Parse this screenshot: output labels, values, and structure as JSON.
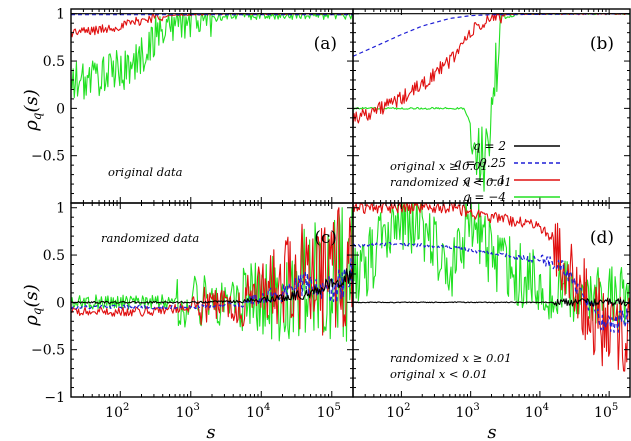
{
  "figure": {
    "ylabel": "ρ_q(s)",
    "xlabel": "s"
  },
  "colors": {
    "q2": "#000000",
    "q025": "#1f1fd6",
    "qm1": "#e01010",
    "qm4": "#22e022"
  },
  "legend": {
    "entries": [
      {
        "label": "q = 2",
        "q": "2",
        "style": "solid",
        "color": "#000000"
      },
      {
        "label": "q = 0.25",
        "q": "0.25",
        "style": "dashed",
        "color": "#1f1fd6"
      },
      {
        "label": "q = −1",
        "q": "−1",
        "style": "solid",
        "color": "#e01010"
      },
      {
        "label": "q = −4",
        "q": "−4",
        "style": "solid",
        "color": "#22e022"
      }
    ]
  },
  "chart_data": [
    {
      "panel": "(a)",
      "type": "line",
      "xscale": "log",
      "xlim": [
        20,
        200000
      ],
      "ylim": [
        -1,
        1.05
      ],
      "annotations": [
        "original data"
      ],
      "series": [
        {
          "name": "q = 2",
          "x": [
            20,
            200000
          ],
          "y": [
            1.0,
            1.0
          ]
        },
        {
          "name": "q = 0.25",
          "x": [
            20,
            200000
          ],
          "y": [
            0.99,
            0.99
          ]
        },
        {
          "name": "q = −1",
          "x": [
            20,
            50,
            100,
            200,
            300,
            500,
            1000,
            3000,
            200000
          ],
          "y": [
            0.8,
            0.83,
            0.87,
            0.93,
            0.96,
            0.98,
            0.99,
            1.0,
            1.0
          ]
        },
        {
          "name": "q = −4",
          "x": [
            20,
            50,
            100,
            150,
            200,
            300,
            400,
            600,
            1000,
            2000,
            5000,
            200000
          ],
          "y": [
            0.25,
            0.35,
            0.4,
            0.45,
            0.55,
            0.75,
            0.85,
            0.92,
            0.95,
            0.97,
            0.99,
            1.0
          ]
        }
      ]
    },
    {
      "panel": "(b)",
      "type": "line",
      "xscale": "log",
      "xlim": [
        20,
        200000
      ],
      "ylim": [
        -1,
        1.05
      ],
      "annotations": [
        "original x ≥ 0.01",
        "randomized x < 0.01"
      ],
      "series": [
        {
          "name": "q = 2",
          "x": [
            20,
            200000
          ],
          "y": [
            1.0,
            1.0
          ]
        },
        {
          "name": "q = 0.25",
          "x": [
            20,
            50,
            100,
            200,
            500,
            1000,
            2000,
            200000
          ],
          "y": [
            0.55,
            0.68,
            0.78,
            0.87,
            0.95,
            0.98,
            0.99,
            1.0
          ]
        },
        {
          "name": "q = −1",
          "x": [
            20,
            50,
            100,
            200,
            500,
            1000,
            2000,
            3000,
            5000,
            200000
          ],
          "y": [
            -0.1,
            0.0,
            0.1,
            0.25,
            0.5,
            0.8,
            0.95,
            0.99,
            1.0,
            1.0
          ]
        },
        {
          "name": "q = −4",
          "x": [
            20,
            50,
            100,
            200,
            400,
            800,
            1200,
            1600,
            2000,
            2500,
            3000,
            5000,
            200000
          ],
          "y": [
            0.0,
            0.0,
            0.0,
            0.0,
            0.0,
            0.0,
            -0.3,
            -0.7,
            0.0,
            0.6,
            0.95,
            1.0,
            1.0
          ]
        }
      ]
    },
    {
      "panel": "(c)",
      "type": "line",
      "xscale": "log",
      "xlim": [
        20,
        200000
      ],
      "ylim": [
        -1,
        1.05
      ],
      "annotations": [
        "randomized data"
      ],
      "series": [
        {
          "name": "q = 2",
          "x": [
            20,
            1000,
            5000,
            20000,
            50000,
            100000,
            200000
          ],
          "y": [
            0.0,
            0.0,
            0.01,
            0.05,
            0.1,
            0.2,
            0.3
          ]
        },
        {
          "name": "q = 0.25",
          "x": [
            20,
            1000,
            5000,
            10000,
            20000,
            40000,
            100000,
            200000
          ],
          "y": [
            -0.05,
            -0.05,
            -0.02,
            0.05,
            0.1,
            0.2,
            0.1,
            0.3
          ]
        },
        {
          "name": "q = −1",
          "x": [
            20,
            200,
            1000,
            5000,
            20000,
            50000,
            100000,
            200000
          ],
          "y": [
            -0.1,
            -0.1,
            -0.05,
            0.0,
            0.2,
            0.3,
            0.3,
            0.5
          ]
        },
        {
          "name": "q = −4",
          "x": [
            20,
            200,
            1000,
            5000,
            20000,
            50000,
            100000,
            200000
          ],
          "y": [
            0.0,
            0.0,
            0.0,
            0.05,
            0.1,
            0.2,
            0.3,
            0.4
          ]
        }
      ]
    },
    {
      "panel": "(d)",
      "type": "line",
      "xscale": "log",
      "xlim": [
        20,
        200000
      ],
      "ylim": [
        -1,
        1.05
      ],
      "annotations": [
        "randomized x ≥ 0.01",
        "original x < 0.01"
      ],
      "series": [
        {
          "name": "q = 2",
          "x": [
            20,
            200000
          ],
          "y": [
            0.0,
            0.0
          ]
        },
        {
          "name": "q = 0.25",
          "x": [
            20,
            100,
            500,
            1000,
            3000,
            10000,
            20000,
            40000,
            80000,
            150000,
            200000
          ],
          "y": [
            0.6,
            0.62,
            0.58,
            0.55,
            0.5,
            0.45,
            0.4,
            0.1,
            -0.2,
            -0.2,
            -0.1
          ]
        },
        {
          "name": "q = −1",
          "x": [
            20,
            100,
            500,
            1000,
            2000,
            5000,
            10000,
            20000,
            50000,
            100000,
            200000
          ],
          "y": [
            1.0,
            1.0,
            1.0,
            0.95,
            0.9,
            0.85,
            0.8,
            0.6,
            0.0,
            -0.3,
            -0.4
          ]
        },
        {
          "name": "q = −4",
          "x": [
            20,
            50,
            100,
            300,
            500,
            1000,
            2000,
            5000,
            10000,
            30000,
            100000,
            200000
          ],
          "y": [
            0.2,
            0.6,
            0.9,
            0.7,
            0.2,
            0.9,
            0.5,
            0.3,
            0.2,
            0.1,
            0.05,
            0.0
          ]
        }
      ]
    }
  ]
}
